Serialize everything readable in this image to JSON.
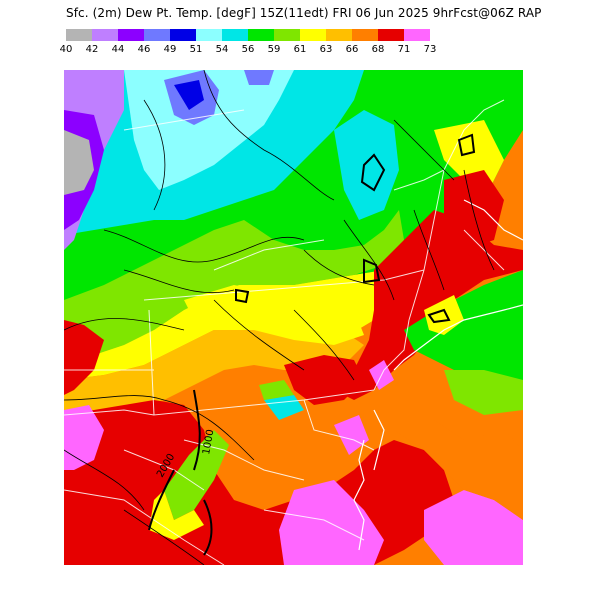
{
  "header": {
    "title": "Sfc. (2m) Dew Pt. Temp. [degF] 15Z(11edt) FRI 06 Jun 2025 9hrFcst@06Z RAP"
  },
  "legend": {
    "colors": [
      "#b4b4b4",
      "#bf7fff",
      "#8c00ff",
      "#6f79ff",
      "#0000e6",
      "#8cffff",
      "#00e6e6",
      "#00e600",
      "#7fe600",
      "#ffff00",
      "#ffbf00",
      "#ff7f00",
      "#e60000",
      "#ff66ff"
    ],
    "labels": [
      "40",
      "42",
      "44",
      "46",
      "49",
      "51",
      "54",
      "56",
      "59",
      "61",
      "63",
      "66",
      "68",
      "71",
      "73"
    ]
  },
  "map": {
    "contour_labels": [
      "2000",
      "1000"
    ]
  }
}
